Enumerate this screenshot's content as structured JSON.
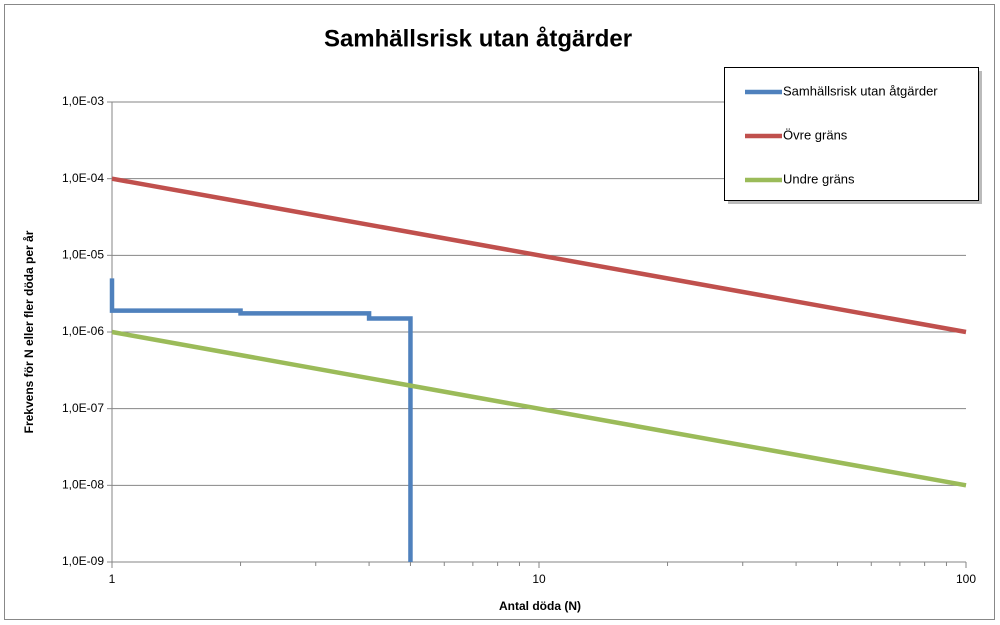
{
  "chart_data": {
    "type": "line",
    "title": "Samhällsrisk utan åtgärder",
    "xlabel": "Antal döda (N)",
    "ylabel": "Frekvens för N eller fler döda per år",
    "xscale": "log",
    "yscale": "log",
    "xlim": [
      1,
      100
    ],
    "ylim": [
      1e-09,
      0.001
    ],
    "xticks": [
      1,
      10,
      100
    ],
    "xminorticks": [
      2,
      3,
      4,
      5,
      6,
      7,
      8,
      9,
      20,
      30,
      40,
      50,
      60,
      70,
      80,
      90
    ],
    "yticks": [
      {
        "value": 1e-09,
        "label": "1,0E-09"
      },
      {
        "value": 1e-08,
        "label": "1,0E-08"
      },
      {
        "value": 1e-07,
        "label": "1,0E-07"
      },
      {
        "value": 1e-06,
        "label": "1,0E-06"
      },
      {
        "value": 1e-05,
        "label": "1,0E-05"
      },
      {
        "value": 0.0001,
        "label": "1,0E-04"
      },
      {
        "value": 0.001,
        "label": "1,0E-03"
      }
    ],
    "grid": true,
    "legend": "upper right",
    "series": [
      {
        "name": "Samhällsrisk utan åtgärder",
        "color": "#4f81bd",
        "x": [
          1,
          1,
          2,
          2,
          4,
          4,
          5,
          5
        ],
        "values": [
          5e-06,
          1.9e-06,
          1.9e-06,
          1.75e-06,
          1.75e-06,
          1.5e-06,
          1.5e-06,
          1e-09
        ]
      },
      {
        "name": "Övre gräns",
        "color": "#c0504d",
        "x": [
          1,
          100
        ],
        "values": [
          0.0001,
          1e-06
        ]
      },
      {
        "name": "Undre gräns",
        "color": "#9bbb59",
        "x": [
          1,
          100
        ],
        "values": [
          1e-06,
          1e-08
        ]
      }
    ]
  }
}
